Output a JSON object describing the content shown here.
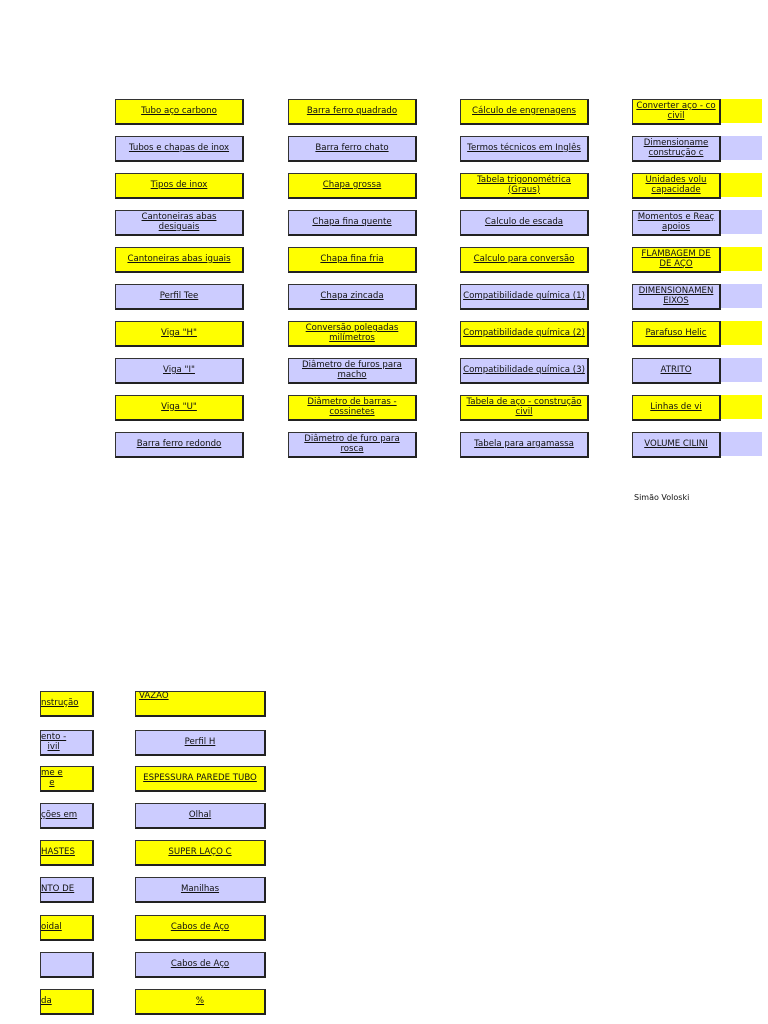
{
  "colors": {
    "yellow": "#ffff00",
    "lavender": "#ccccff",
    "border": "#222222"
  },
  "columns": [
    {
      "items": [
        {
          "label": "Tubo aço carbono",
          "fill": "yellow"
        },
        {
          "label": "Tubos e chapas de inox",
          "fill": "lavender"
        },
        {
          "label": "Tipos de inox",
          "fill": "yellow"
        },
        {
          "label": "Cantoneiras abas\ndesiguais",
          "fill": "lavender"
        },
        {
          "label": "Cantoneiras abas iguais",
          "fill": "yellow"
        },
        {
          "label": "Perfil Tee",
          "fill": "lavender"
        },
        {
          "label": "Viga \"H\"",
          "fill": "yellow"
        },
        {
          "label": "Viga \"I\"",
          "fill": "lavender"
        },
        {
          "label": "Viga \"U\"",
          "fill": "yellow"
        },
        {
          "label": "Barra ferro redondo",
          "fill": "lavender"
        }
      ]
    },
    {
      "items": [
        {
          "label": "Barra ferro quadrado",
          "fill": "yellow"
        },
        {
          "label": "Barra ferro chato",
          "fill": "lavender"
        },
        {
          "label": "Chapa grossa",
          "fill": "yellow"
        },
        {
          "label": "Chapa fina quente",
          "fill": "lavender"
        },
        {
          "label": "Chapa fina fria",
          "fill": "yellow"
        },
        {
          "label": "Chapa zincada",
          "fill": "lavender"
        },
        {
          "label": "Conversão polegadas\nmilímetros",
          "fill": "yellow"
        },
        {
          "label": "Diâmetro de furos para\nmacho",
          "fill": "lavender"
        },
        {
          "label": "Diâmetro de barras -\ncossinetes",
          "fill": "yellow"
        },
        {
          "label": "Diâmetro de furo para\nrosca",
          "fill": "lavender"
        }
      ]
    },
    {
      "items": [
        {
          "label": "Cálculo de engrenagens",
          "fill": "yellow"
        },
        {
          "label": "Termos técnicos em Inglês",
          "fill": "lavender"
        },
        {
          "label": "Tabela trigonométrica\n(Graus)",
          "fill": "yellow"
        },
        {
          "label": "Calculo de escada",
          "fill": "lavender"
        },
        {
          "label": "Calculo para conversão",
          "fill": "yellow"
        },
        {
          "label": "Compatibilidade química (1)",
          "fill": "lavender"
        },
        {
          "label": "Compatibilidade química (2)",
          "fill": "yellow"
        },
        {
          "label": "Compatibilidade química (3)",
          "fill": "lavender"
        },
        {
          "label": "Tabela de aço - construção\ncivil",
          "fill": "yellow"
        },
        {
          "label": "Tabela para argamassa",
          "fill": "lavender"
        }
      ]
    },
    {
      "items": [
        {
          "label": "Converter aço - co\ncivil",
          "fill": "yellow"
        },
        {
          "label": "Dimensioname\nconstrução c",
          "fill": "lavender"
        },
        {
          "label": "Unidades volu\ncapacidade",
          "fill": "yellow"
        },
        {
          "label": "Momentos e Reaç\napoios",
          "fill": "lavender"
        },
        {
          "label": "FLAMBAGEM DE\nDE AÇO",
          "fill": "yellow"
        },
        {
          "label": "DIMENSIONAMEN\nEIXOS",
          "fill": "lavender"
        },
        {
          "label": "Parafuso Helic",
          "fill": "yellow"
        },
        {
          "label": "ATRITO",
          "fill": "lavender"
        },
        {
          "label": "Linhas de vi",
          "fill": "yellow"
        },
        {
          "label": "VOLUME CILINI",
          "fill": "lavender"
        }
      ]
    }
  ],
  "page2_left": [
    {
      "label": "nstrução",
      "fill": "yellow"
    },
    {
      "label": "ento -\nivil",
      "fill": "lavender"
    },
    {
      "label": "me e\ne",
      "fill": "yellow"
    },
    {
      "label": "ções em",
      "fill": "lavender"
    },
    {
      "label": "HASTES",
      "fill": "yellow"
    },
    {
      "label": "NTO DE",
      "fill": "lavender"
    },
    {
      "label": "oidal",
      "fill": "yellow"
    },
    {
      "label": "",
      "fill": "lavender"
    },
    {
      "label": "da",
      "fill": "yellow"
    }
  ],
  "page2_right": [
    {
      "label": "VAZÃO",
      "fill": "yellow"
    },
    {
      "label": "Perfil H",
      "fill": "lavender"
    },
    {
      "label": "ESPESSURA PAREDE TUBO",
      "fill": "yellow"
    },
    {
      "label": "Olhal",
      "fill": "lavender"
    },
    {
      "label": "SUPER LAÇO C",
      "fill": "yellow"
    },
    {
      "label": "Manilhas",
      "fill": "lavender"
    },
    {
      "label": "Cabos de Aço",
      "fill": "yellow"
    },
    {
      "label": "Cabos de Aço",
      "fill": "lavender"
    },
    {
      "label": "%",
      "fill": "yellow"
    }
  ],
  "signature": "Simão Voloski"
}
